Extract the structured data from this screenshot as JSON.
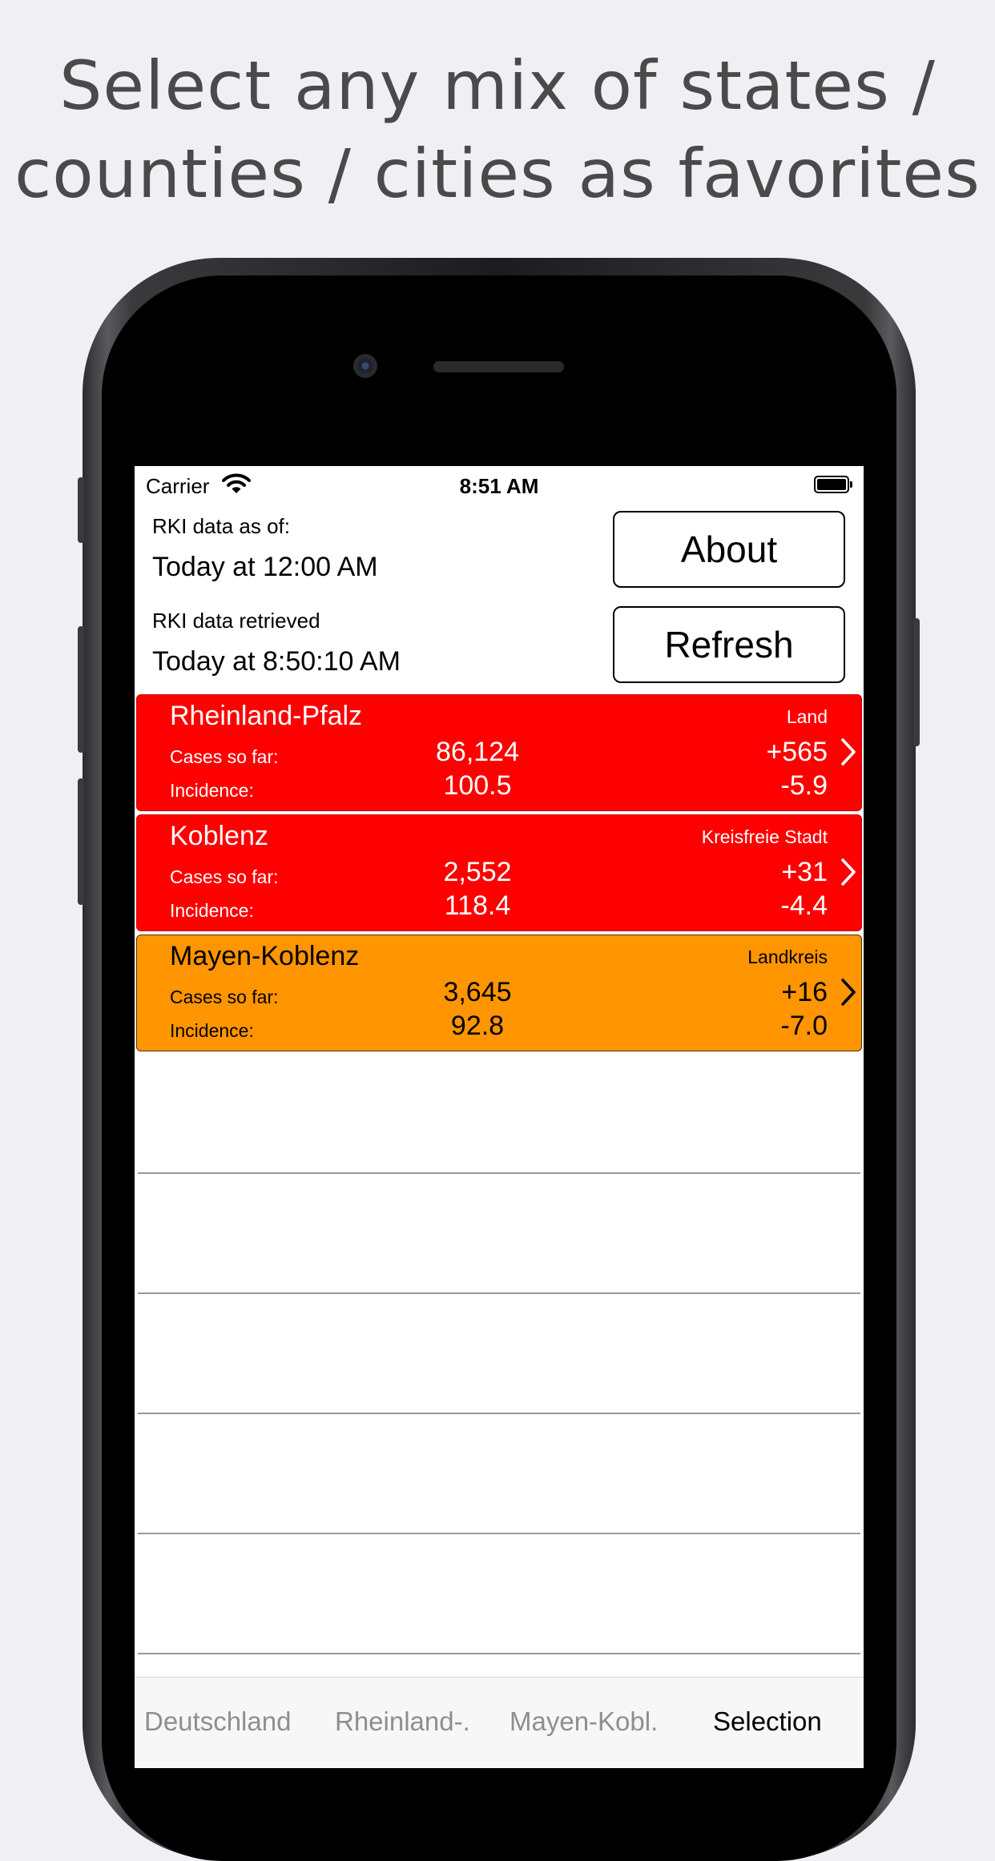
{
  "headline": {
    "line1": "Select any mix of states /",
    "line2": "counties / cities as favorites"
  },
  "status_bar": {
    "carrier": "Carrier",
    "time": "8:51 AM"
  },
  "info": {
    "data_as_of_label": "RKI data as of:",
    "data_as_of_value": "Today at 12:00 AM",
    "retrieved_label": "RKI data retrieved",
    "retrieved_value": "Today at 8:50:10 AM"
  },
  "buttons": {
    "about": "About",
    "refresh": "Refresh"
  },
  "favorites": [
    {
      "name": "Rheinland-Pfalz",
      "kind": "Land",
      "cases_label": "Cases so far:",
      "cases": "86,124",
      "cases_delta": "+565",
      "incidence_label": "Incidence:",
      "incidence": "100.5",
      "incidence_delta": "-5.9",
      "color": "#ff0000"
    },
    {
      "name": "Koblenz",
      "kind": "Kreisfreie Stadt",
      "cases_label": "Cases so far:",
      "cases": "2,552",
      "cases_delta": "+31",
      "incidence_label": "Incidence:",
      "incidence": "118.4",
      "incidence_delta": "-4.4",
      "color": "#ff0000"
    },
    {
      "name": "Mayen-Koblenz",
      "kind": "Landkreis",
      "cases_label": "Cases so far:",
      "cases": "3,645",
      "cases_delta": "+16",
      "incidence_label": "Incidence:",
      "incidence": "92.8",
      "incidence_delta": "-7.0",
      "color": "#ff9500"
    }
  ],
  "tabs": [
    {
      "label": "Deutschland",
      "active": false
    },
    {
      "label": "Rheinland-.",
      "active": false
    },
    {
      "label": "Mayen-Kobl.",
      "active": false
    },
    {
      "label": "Selection",
      "active": true
    }
  ],
  "icons": {
    "wifi": "wifi-icon",
    "battery": "battery-icon",
    "chevron": "chevron-right-icon"
  }
}
